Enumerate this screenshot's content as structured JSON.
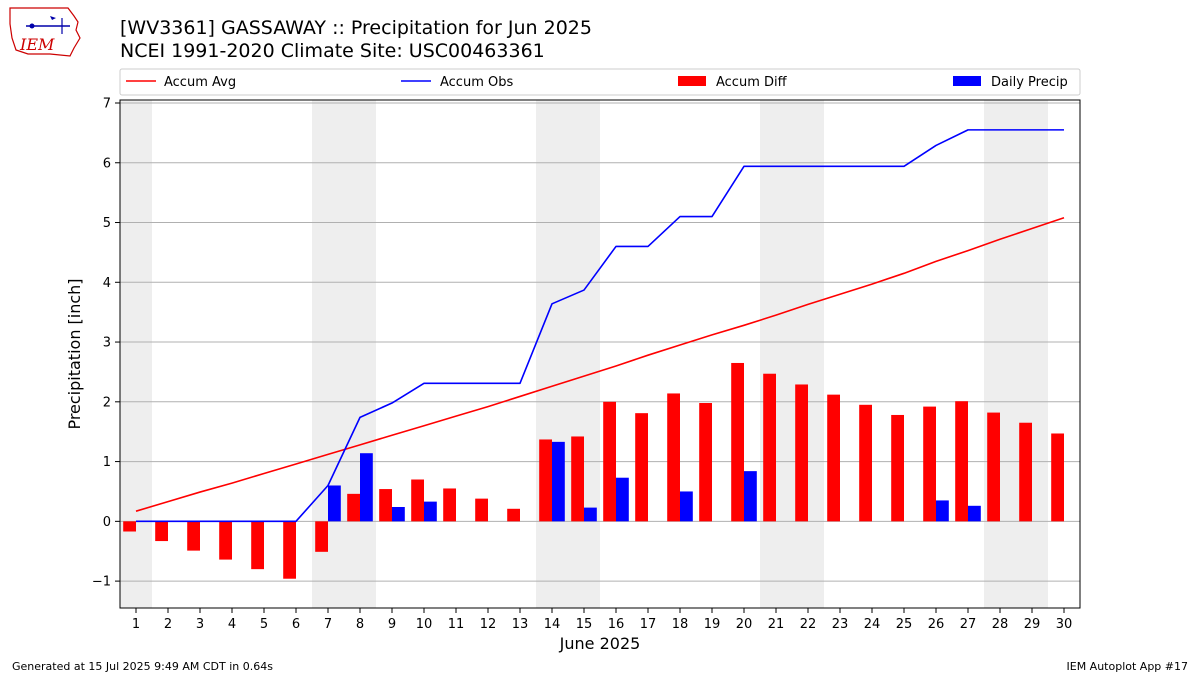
{
  "header": {
    "title_line1": "[WV3361] GASSAWAY :: Precipitation for Jun 2025",
    "title_line2": "NCEI 1991-2020 Climate Site: USC00463361"
  },
  "logo": {
    "text": "IEM"
  },
  "footer": {
    "generated": "Generated at 15 Jul 2025 9:49 AM CDT in 0.64s",
    "app": "IEM Autoplot App #17"
  },
  "colors": {
    "avg": "#ff0000",
    "obs": "#0000ff",
    "diff": "#ff0000",
    "daily": "#0000ff",
    "weekend_band": "#eeeeee",
    "grid": "#b0b0b0"
  },
  "chart_data": {
    "type": "bar",
    "xlabel": "June 2025",
    "ylabel": "Precipitation [inch]",
    "ylim": [
      -1.45,
      7.05
    ],
    "yticks": [
      -1,
      0,
      1,
      2,
      3,
      4,
      5,
      6,
      7
    ],
    "ytick_labels": [
      "−1",
      "0",
      "1",
      "2",
      "3",
      "4",
      "5",
      "6",
      "7"
    ],
    "xlim": [
      0.5,
      30.5
    ],
    "x": [
      1,
      2,
      3,
      4,
      5,
      6,
      7,
      8,
      9,
      10,
      11,
      12,
      13,
      14,
      15,
      16,
      17,
      18,
      19,
      20,
      21,
      22,
      23,
      24,
      25,
      26,
      27,
      28,
      29,
      30
    ],
    "x_tick_labels": [
      "1",
      "2",
      "3",
      "4",
      "5",
      "6",
      "7",
      "8",
      "9",
      "10",
      "11",
      "12",
      "13",
      "14",
      "15",
      "16",
      "17",
      "18",
      "19",
      "20",
      "21",
      "22",
      "23",
      "24",
      "25",
      "26",
      "27",
      "28",
      "29",
      "30"
    ],
    "grid": "horizontal",
    "legend_position": "top",
    "weekend_bands": [
      [
        0.5,
        1.5
      ],
      [
        6.5,
        8.5
      ],
      [
        13.5,
        15.5
      ],
      [
        20.5,
        22.5
      ],
      [
        27.5,
        29.5
      ]
    ],
    "series": [
      {
        "name": "Accum Avg",
        "kind": "line",
        "values": [
          0.17,
          0.33,
          0.49,
          0.64,
          0.8,
          0.96,
          1.12,
          1.28,
          1.44,
          1.6,
          1.76,
          1.92,
          2.09,
          2.26,
          2.43,
          2.6,
          2.78,
          2.95,
          3.12,
          3.28,
          3.45,
          3.63,
          3.8,
          3.97,
          4.15,
          4.35,
          4.53,
          4.72,
          4.9,
          5.08
        ]
      },
      {
        "name": "Accum Obs",
        "kind": "line",
        "values": [
          0,
          0,
          0,
          0,
          0,
          0,
          0.6,
          1.74,
          1.98,
          2.31,
          2.31,
          2.31,
          2.31,
          3.64,
          3.87,
          4.6,
          4.6,
          5.1,
          5.1,
          5.94,
          5.94,
          5.94,
          5.94,
          5.94,
          5.94,
          6.29,
          6.55,
          6.55,
          6.55,
          6.55
        ]
      },
      {
        "name": "Accum Diff",
        "kind": "bar",
        "values": [
          -0.17,
          -0.33,
          -0.49,
          -0.64,
          -0.8,
          -0.96,
          -0.51,
          0.46,
          0.54,
          0.7,
          0.55,
          0.38,
          0.21,
          1.37,
          1.42,
          2.0,
          1.81,
          2.14,
          1.98,
          2.65,
          2.47,
          2.29,
          2.12,
          1.95,
          1.78,
          1.92,
          2.01,
          1.82,
          1.65,
          1.47
        ]
      },
      {
        "name": "Daily Precip",
        "kind": "bar",
        "values": [
          0,
          0,
          0,
          0,
          0,
          0,
          0.6,
          1.14,
          0.24,
          0.33,
          0,
          0,
          0,
          1.33,
          0.23,
          0.73,
          0,
          0.5,
          0,
          0.84,
          0,
          0,
          0,
          0,
          0,
          0.35,
          0.26,
          0,
          0,
          0
        ]
      }
    ]
  }
}
